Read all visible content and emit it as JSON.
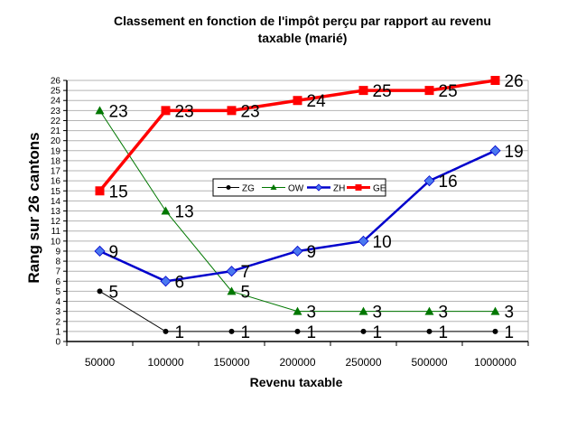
{
  "chart_data": {
    "type": "line",
    "title": "Classement en fonction de l'impôt perçu par rapport au revenu taxable (marié)",
    "title_line1": "Classement en fonction de l'impôt perçu par rapport au revenu",
    "title_line2": "taxable (marié)",
    "xlabel": "Revenu taxable",
    "ylabel": "Rang sur 26 cantons",
    "categories": [
      "50000",
      "100000",
      "150000",
      "200000",
      "250000",
      "500000",
      "1000000"
    ],
    "ylim": [
      0,
      26
    ],
    "yticks": [
      0,
      1,
      2,
      3,
      4,
      5,
      6,
      7,
      8,
      9,
      10,
      11,
      12,
      13,
      14,
      15,
      16,
      17,
      18,
      19,
      20,
      21,
      22,
      23,
      24,
      25,
      26
    ],
    "grid": "horizontal",
    "legend_position": "inside-center",
    "series": [
      {
        "name": "ZG",
        "color": "#000000",
        "marker": "circle",
        "values": [
          5,
          1,
          1,
          1,
          1,
          1,
          1
        ]
      },
      {
        "name": "OW",
        "color": "#007700",
        "marker": "triangle",
        "values": [
          23,
          13,
          5,
          3,
          3,
          3,
          3
        ]
      },
      {
        "name": "ZH",
        "color": "#0000cc",
        "marker": "diamond",
        "values": [
          9,
          6,
          7,
          9,
          10,
          16,
          19
        ]
      },
      {
        "name": "GE",
        "color": "#ff0000",
        "marker": "square",
        "values": [
          15,
          23,
          23,
          24,
          25,
          25,
          26
        ]
      }
    ]
  }
}
